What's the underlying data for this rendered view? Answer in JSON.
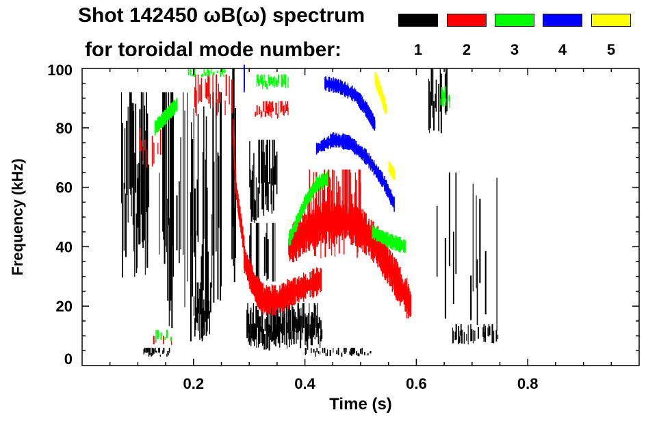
{
  "chart_data": {
    "type": "heatmap",
    "title_line1": "Shot 142450 ωB(ω) spectrum",
    "title_line2": "for toroidal mode number:",
    "xlabel": "Time (s)",
    "ylabel": "Frequency (kHz)",
    "xlim": [
      0,
      1.0
    ],
    "ylim": [
      0,
      100
    ],
    "xticks": [
      "0.2",
      "0.4",
      "0.6",
      "0.8"
    ],
    "xtick_values": [
      0.2,
      0.4,
      0.6,
      0.8
    ],
    "yticks": [
      "0",
      "20",
      "40",
      "60",
      "80",
      "100"
    ],
    "ytick_values": [
      0,
      20,
      40,
      60,
      80,
      100
    ],
    "legend": [
      {
        "label": "1",
        "color": "#000000"
      },
      {
        "label": "2",
        "color": "#ff0000"
      },
      {
        "label": "3",
        "color": "#00ff00"
      },
      {
        "label": "4",
        "color": "#0000ff"
      },
      {
        "label": "5",
        "color": "#ffff00"
      }
    ],
    "blobs": [
      {
        "mode": 1,
        "t": [
          0.07,
          0.12
        ],
        "f": [
          28,
          92
        ],
        "density": 0.9
      },
      {
        "mode": 1,
        "t": [
          0.135,
          0.25
        ],
        "f": [
          8,
          92
        ],
        "density": 0.55
      },
      {
        "mode": 1,
        "t": [
          0.2,
          0.23
        ],
        "f": [
          8,
          28
        ],
        "density": 0.9
      },
      {
        "mode": 1,
        "t": [
          0.268,
          0.275
        ],
        "f": [
          2,
          100
        ],
        "density": 0.9
      },
      {
        "mode": 1,
        "t": [
          0.3,
          0.35
        ],
        "f": [
          48,
          76
        ],
        "density": 0.85
      },
      {
        "mode": 1,
        "t": [
          0.3,
          0.35
        ],
        "f": [
          20,
          48
        ],
        "density": 0.35
      },
      {
        "mode": 1,
        "t": [
          0.295,
          0.43
        ],
        "f": [
          5,
          21
        ],
        "density": 0.95
      },
      {
        "mode": 1,
        "t": [
          0.11,
          0.16
        ],
        "f": [
          3,
          6
        ],
        "density": 0.8
      },
      {
        "mode": 1,
        "t": [
          0.62,
          0.66
        ],
        "f": [
          78,
          100
        ],
        "density": 0.5
      },
      {
        "mode": 1,
        "t": [
          0.62,
          0.75
        ],
        "f": [
          5,
          65
        ],
        "density": 0.12
      },
      {
        "mode": 1,
        "t": [
          0.66,
          0.75
        ],
        "f": [
          7,
          14
        ],
        "density": 0.5
      },
      {
        "mode": 1,
        "t": [
          0.4,
          0.52
        ],
        "f": [
          3,
          6
        ],
        "density": 0.45
      },
      {
        "mode": 2,
        "t": [
          0.4,
          0.5
        ],
        "f": [
          36,
          66
        ],
        "density": 0.85
      },
      {
        "mode": 2,
        "t": [
          0.2,
          0.27
        ],
        "f": [
          84,
          98
        ],
        "density": 0.45
      },
      {
        "mode": 2,
        "t": [
          0.31,
          0.37
        ],
        "f": [
          83,
          89
        ],
        "density": 0.7
      },
      {
        "mode": 2,
        "t": [
          0.1,
          0.14
        ],
        "f": [
          66,
          80
        ],
        "density": 0.25
      },
      {
        "mode": 2,
        "t": [
          0.12,
          0.16
        ],
        "f": [
          6,
          10
        ],
        "density": 0.25
      },
      {
        "mode": 3,
        "t": [
          0.19,
          0.26
        ],
        "f": [
          97,
          100
        ],
        "density": 0.5
      },
      {
        "mode": 3,
        "t": [
          0.31,
          0.37
        ],
        "f": [
          93,
          98
        ],
        "density": 0.7
      },
      {
        "mode": 3,
        "t": [
          0.12,
          0.16
        ],
        "f": [
          8,
          12
        ],
        "density": 0.3
      },
      {
        "mode": 3,
        "t": [
          0.64,
          0.66
        ],
        "f": [
          86,
          94
        ],
        "density": 0.5
      }
    ],
    "traces": [
      {
        "mode": 2,
        "width": 3,
        "points": [
          [
            0.29,
            36
          ],
          [
            0.31,
            26
          ],
          [
            0.325,
            22
          ],
          [
            0.35,
            22
          ],
          [
            0.38,
            25
          ],
          [
            0.43,
            29
          ]
        ]
      },
      {
        "mode": 2,
        "width": 4,
        "points": [
          [
            0.37,
            40
          ],
          [
            0.4,
            45
          ],
          [
            0.43,
            48
          ],
          [
            0.47,
            49
          ],
          [
            0.5,
            46
          ],
          [
            0.53,
            40
          ],
          [
            0.56,
            30
          ],
          [
            0.59,
            20
          ]
        ]
      },
      {
        "mode": 2,
        "width": 2,
        "points": [
          [
            0.27,
            80
          ],
          [
            0.275,
            60
          ],
          [
            0.29,
            40
          ]
        ]
      },
      {
        "mode": 3,
        "width": 1.5,
        "points": [
          [
            0.37,
            42
          ],
          [
            0.4,
            55
          ],
          [
            0.42,
            61
          ],
          [
            0.44,
            63
          ]
        ]
      },
      {
        "mode": 3,
        "width": 1.5,
        "points": [
          [
            0.52,
            45
          ],
          [
            0.55,
            42
          ],
          [
            0.58,
            40
          ]
        ]
      },
      {
        "mode": 3,
        "width": 1.5,
        "points": [
          [
            0.13,
            80
          ],
          [
            0.15,
            84
          ],
          [
            0.17,
            88
          ]
        ]
      },
      {
        "mode": 4,
        "width": 1.5,
        "points": [
          [
            0.435,
            95
          ],
          [
            0.46,
            94
          ],
          [
            0.49,
            91
          ],
          [
            0.51,
            86
          ],
          [
            0.525,
            81
          ]
        ]
      },
      {
        "mode": 4,
        "width": 1.5,
        "points": [
          [
            0.42,
            73
          ],
          [
            0.45,
            76
          ],
          [
            0.48,
            75
          ],
          [
            0.51,
            70
          ],
          [
            0.54,
            62
          ],
          [
            0.56,
            54
          ]
        ]
      },
      {
        "mode": 4,
        "width": 1,
        "points": [
          [
            0.29,
            100
          ],
          [
            0.29,
            93
          ]
        ]
      },
      {
        "mode": 5,
        "width": 1.5,
        "points": [
          [
            0.525,
            97
          ],
          [
            0.535,
            92
          ],
          [
            0.545,
            86
          ]
        ]
      },
      {
        "mode": 5,
        "width": 1.2,
        "points": [
          [
            0.55,
            67
          ],
          [
            0.56,
            64
          ]
        ]
      }
    ]
  }
}
